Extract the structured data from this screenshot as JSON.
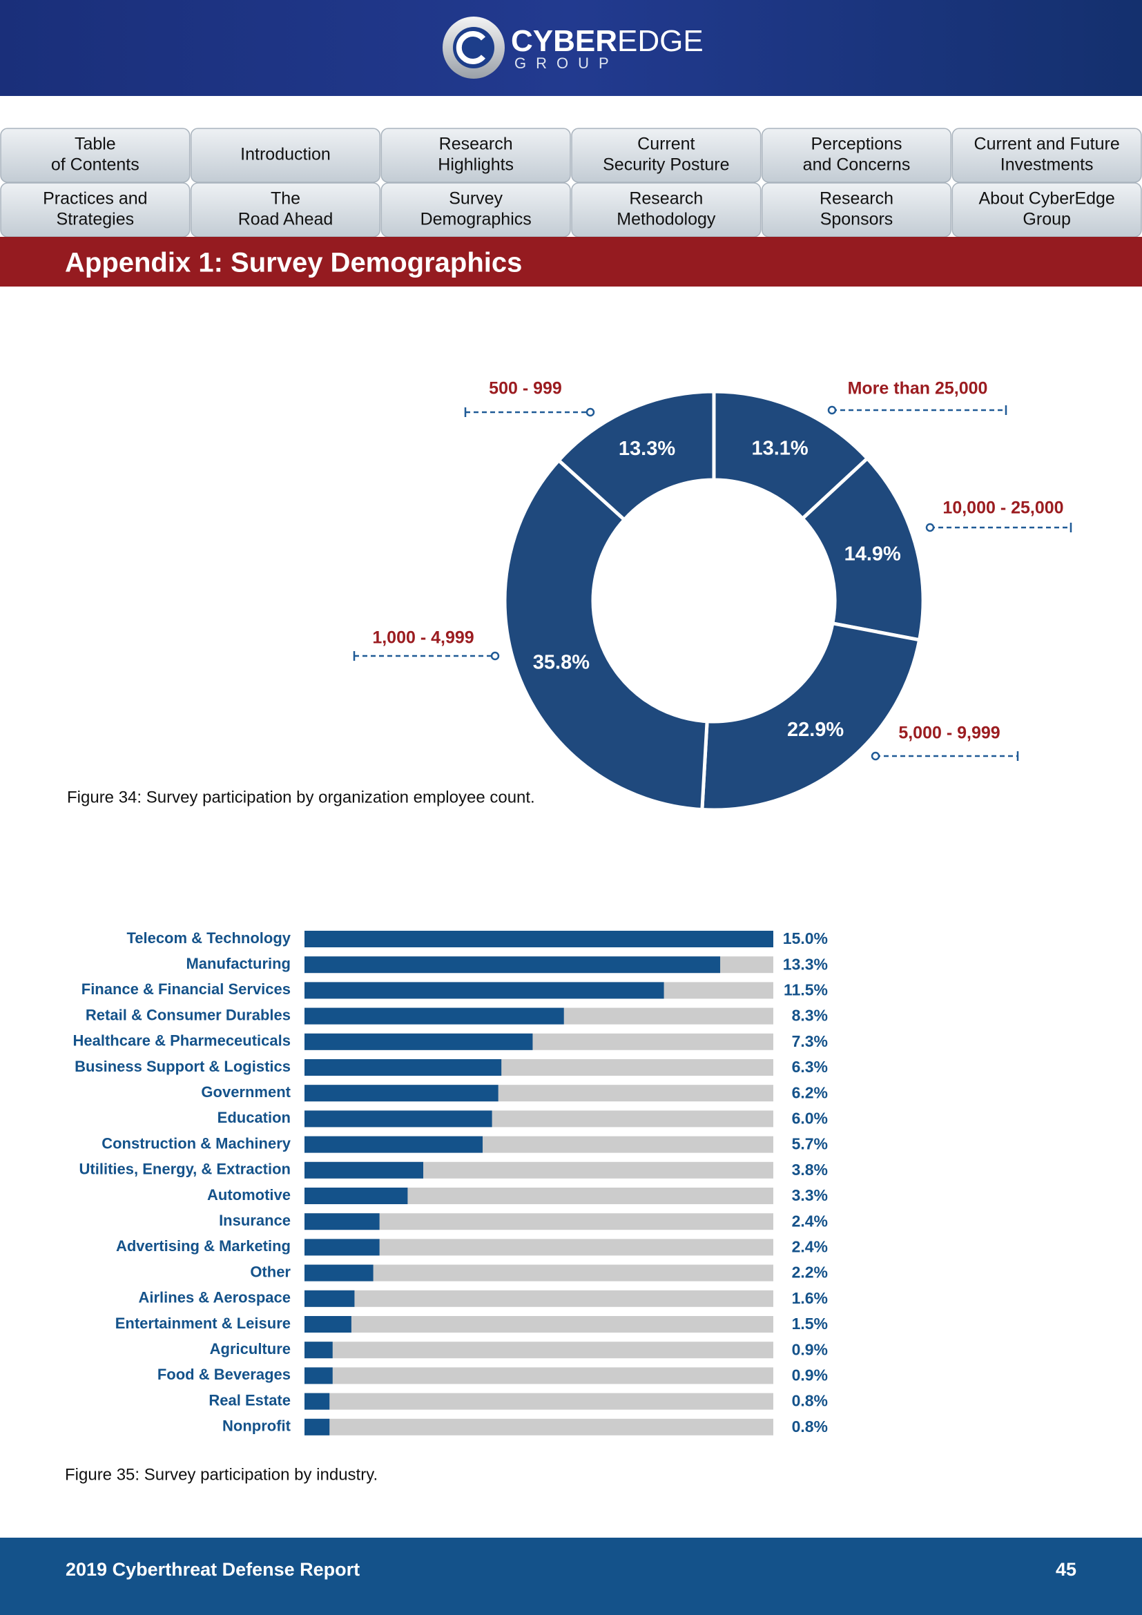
{
  "header": {
    "logo_bold": "CYBER",
    "logo_light": "EDGE",
    "logo_sub": "GROUP"
  },
  "nav": [
    [
      "Table",
      "of Contents"
    ],
    [
      "Introduction"
    ],
    [
      "Research",
      "Highlights"
    ],
    [
      "Current",
      "Security Posture"
    ],
    [
      "Perceptions",
      "and Concerns"
    ],
    [
      "Current and Future",
      "Investments"
    ],
    [
      "Practices and",
      "Strategies"
    ],
    [
      "The",
      "Road Ahead"
    ],
    [
      "Survey",
      "Demographics"
    ],
    [
      "Research",
      "Methodology"
    ],
    [
      "Research",
      "Sponsors"
    ],
    [
      "About CyberEdge",
      "Group"
    ]
  ],
  "section_title": "Appendix 1: Survey Demographics",
  "chart_data": [
    {
      "type": "donut",
      "caption": "Figure 34: Survey participation by organization employee count.",
      "categories": [
        "More than 25,000",
        "10,000 - 25,000",
        "5,000 - 9,999",
        "1,000 - 4,999",
        "500 - 999"
      ],
      "values": [
        13.1,
        14.9,
        22.9,
        35.8,
        13.3
      ],
      "value_labels": [
        "13.1%",
        "14.9%",
        "22.9%",
        "35.8%",
        "13.3%"
      ],
      "color": "#1f497d",
      "label_color": "#9b1c20"
    },
    {
      "type": "hbar",
      "caption": "Figure 35: Survey participation by industry.",
      "categories": [
        "Telecom & Technology",
        "Manufacturing",
        "Finance & Financial Services",
        "Retail & Consumer Durables",
        "Healthcare & Pharmeceuticals",
        "Business Support & Logistics",
        "Government",
        "Education",
        "Construction & Machinery",
        "Utilities, Energy, & Extraction",
        "Automotive",
        "Insurance",
        "Advertising & Marketing",
        "Other",
        "Airlines & Aerospace",
        "Entertainment & Leisure",
        "Agriculture",
        "Food & Beverages",
        "Real Estate",
        "Nonprofit"
      ],
      "values": [
        15.0,
        13.3,
        11.5,
        8.3,
        7.3,
        6.3,
        6.2,
        6.0,
        5.7,
        3.8,
        3.3,
        2.4,
        2.4,
        2.2,
        1.6,
        1.5,
        0.9,
        0.9,
        0.8,
        0.8
      ],
      "value_labels": [
        "15.0%",
        "13.3%",
        "11.5%",
        "8.3%",
        "7.3%",
        "6.3%",
        "6.2%",
        "6.0%",
        "5.7%",
        "3.8%",
        "3.3%",
        "2.4%",
        "2.4%",
        "2.2%",
        "1.6%",
        "1.5%",
        "0.9%",
        "0.9%",
        "0.8%",
        "0.8%"
      ],
      "xlim": [
        0,
        15
      ],
      "color": "#14528a",
      "track_color": "#cccccc"
    }
  ],
  "footer": {
    "title": "2019 Cyberthreat Defense Report",
    "page": "45"
  }
}
